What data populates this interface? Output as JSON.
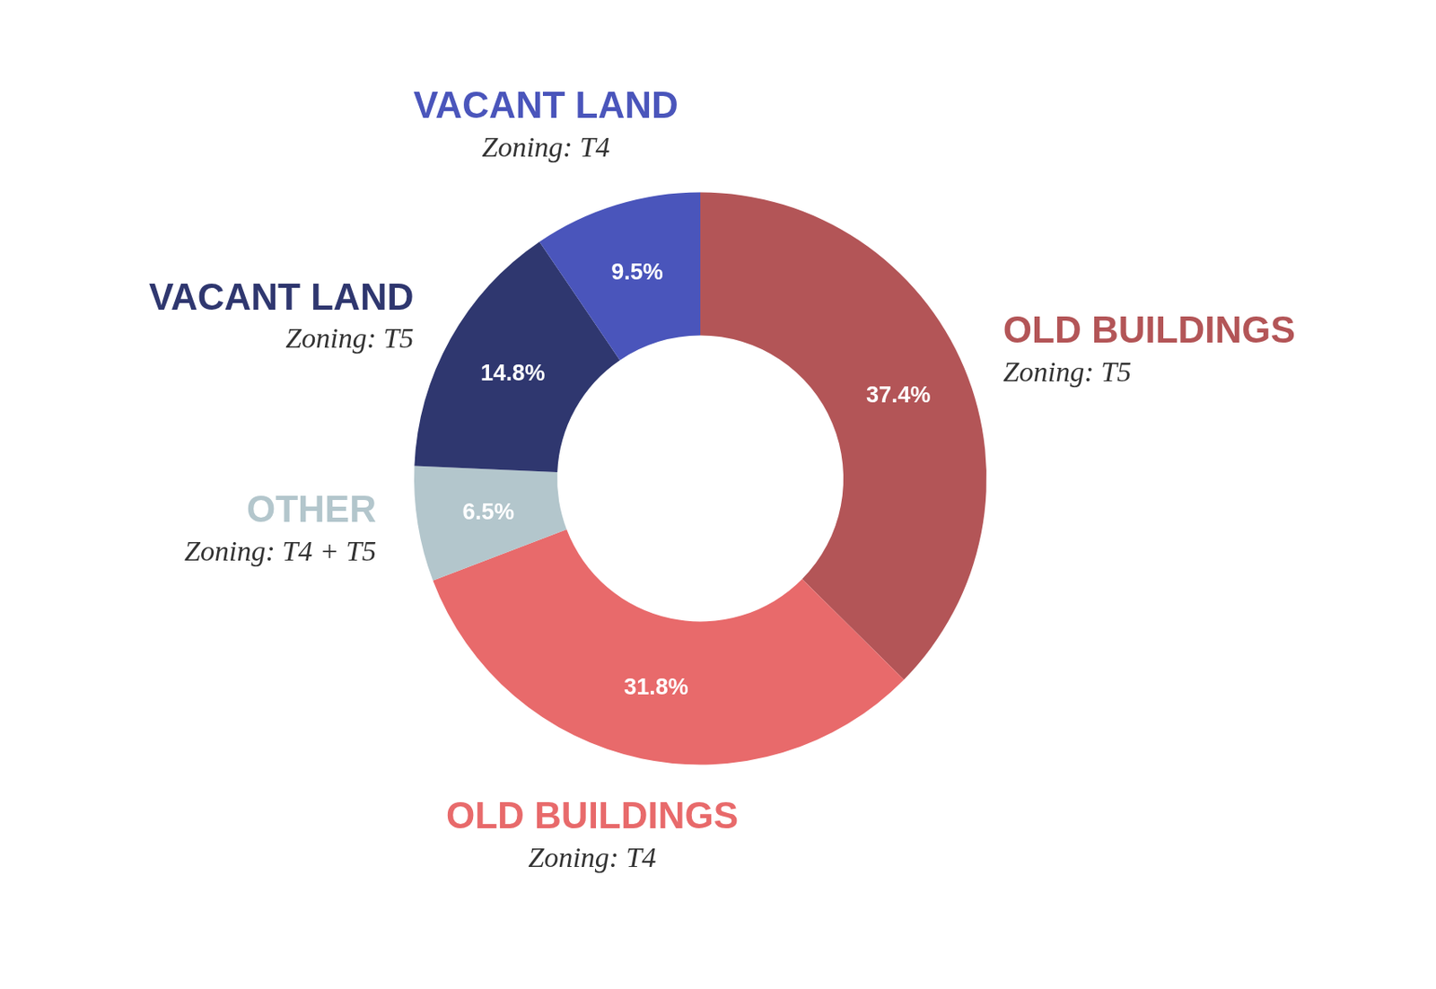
{
  "chart_data": {
    "type": "doughnut",
    "categories": [
      "OLD BUILDINGS",
      "OLD BUILDINGS",
      "OTHER",
      "VACANT LAND",
      "VACANT LAND"
    ],
    "subtitles": [
      "Zoning: T5",
      "Zoning: T4",
      "Zoning: T4 + T5",
      "Zoning: T5",
      "Zoning: T4"
    ],
    "values": [
      37.4,
      31.8,
      6.5,
      14.8,
      9.5
    ],
    "value_labels": [
      "37.4%",
      "31.8%",
      "6.5%",
      "14.8%",
      "9.5%"
    ],
    "colors": [
      "#b35557",
      "#e86a6b",
      "#b3c6cc",
      "#2f376f",
      "#4a55bb"
    ],
    "data_labels": true
  }
}
